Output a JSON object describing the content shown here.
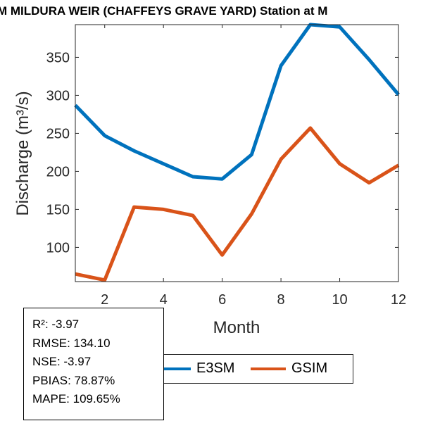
{
  "chart_data": {
    "type": "line",
    "title": "M MILDURA WEIR (CHAFFEYS GRAVE YARD)  Station at  M",
    "xlabel": "Month",
    "ylabel": "Discharge (m³/s)",
    "xlim": [
      1,
      12
    ],
    "ylim": [
      55,
      393
    ],
    "xticks": [
      2,
      4,
      6,
      8,
      10,
      12
    ],
    "yticks": [
      100,
      150,
      200,
      250,
      300,
      350
    ],
    "x": [
      1,
      2,
      3,
      4,
      5,
      6,
      7,
      8,
      9,
      10,
      11,
      12
    ],
    "series": [
      {
        "name": "E3SM",
        "color": "#0072BD",
        "values": [
          287,
          247,
          227,
          210,
          193,
          190,
          222,
          339,
          393,
          390,
          347,
          301
        ]
      },
      {
        "name": "GSIM",
        "color": "#D95319",
        "values": [
          65,
          57,
          153,
          150,
          142,
          90,
          144,
          216,
          257,
          210,
          185,
          208
        ]
      }
    ],
    "legend_position": "bottom"
  },
  "stats": {
    "r2": "R²: -3.97",
    "rmse": "RMSE: 134.10",
    "nse": "NSE: -3.97",
    "pbias": "PBIAS: 78.87%",
    "mape": "MAPE: 109.65%"
  }
}
